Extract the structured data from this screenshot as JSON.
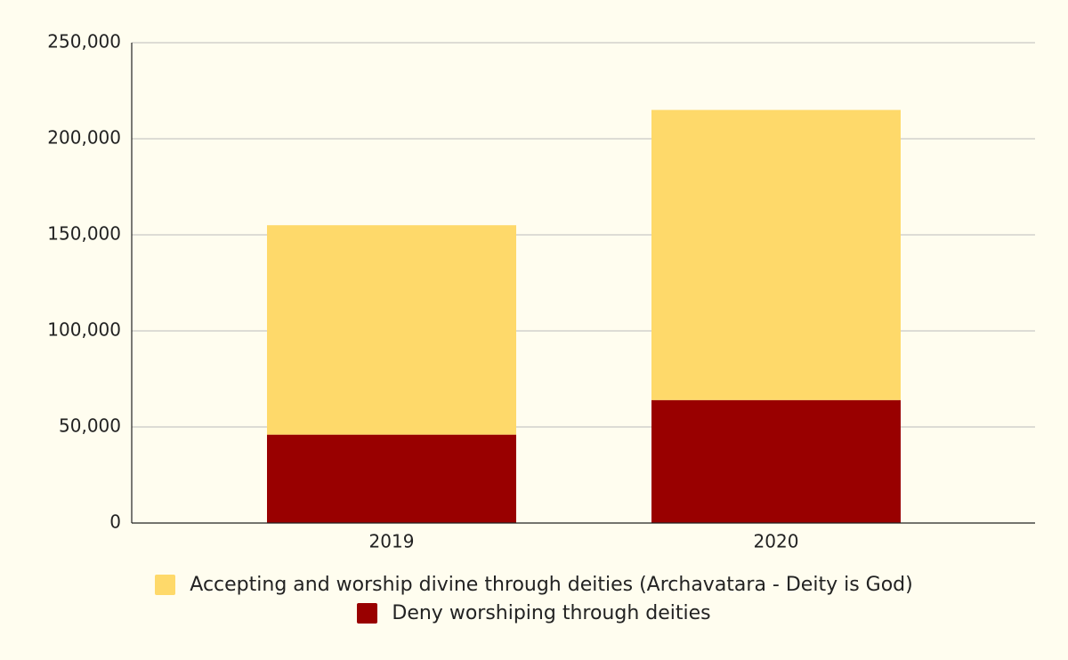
{
  "chart_data": {
    "type": "bar",
    "stacked": true,
    "categories": [
      "2019",
      "2020"
    ],
    "series": [
      {
        "name": "Accepting and worship divine through deities (Archavatara - Deity is God)",
        "color": "#fed96a",
        "values": [
          109000,
          151000
        ]
      },
      {
        "name": "Deny worshiping through deities",
        "color": "#990000",
        "values": [
          46000,
          64000
        ]
      }
    ],
    "ylim": [
      0,
      250000
    ],
    "yticks": [
      0,
      {
        "value": 50000,
        "label": "50,000"
      },
      {
        "value": 100000,
        "label": "100,000"
      },
      {
        "value": 150000,
        "label": "150,000"
      },
      {
        "value": 200000,
        "label": "200,000"
      },
      {
        "value": 250000,
        "label": "250,000"
      }
    ],
    "grid": true
  }
}
